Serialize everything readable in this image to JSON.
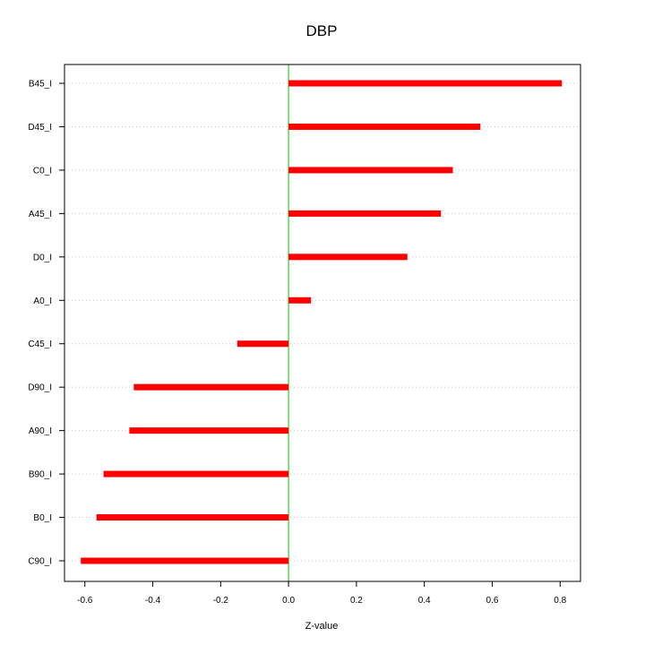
{
  "chart_data": {
    "type": "bar",
    "orientation": "horizontal",
    "title": "DBP",
    "xlabel": "Z-value",
    "ylabel": "",
    "xlim": [
      -0.66,
      0.86
    ],
    "x_ticks": [
      -0.6,
      -0.4,
      -0.2,
      0.0,
      0.2,
      0.4,
      0.6,
      0.8
    ],
    "x_tick_labels": [
      "-0.6",
      "-0.4",
      "-0.2",
      "0.0",
      "0.2",
      "0.4",
      "0.6",
      "0.8"
    ],
    "categories": [
      "B45_I",
      "D45_I",
      "C0_I",
      "A45_I",
      "D0_I",
      "A0_I",
      "C45_I",
      "D90_I",
      "A90_I",
      "B90_I",
      "B0_I",
      "C90_I"
    ],
    "values": [
      0.805,
      0.565,
      0.484,
      0.449,
      0.35,
      0.066,
      -0.151,
      -0.456,
      -0.469,
      -0.545,
      -0.566,
      -0.612
    ],
    "grid": "horizontal dotted",
    "zero_line": true,
    "colors": {
      "bar": "#ff0000",
      "zero_line": "#00cc00",
      "grid": "#c8c8c8",
      "frame": "#000000"
    }
  }
}
